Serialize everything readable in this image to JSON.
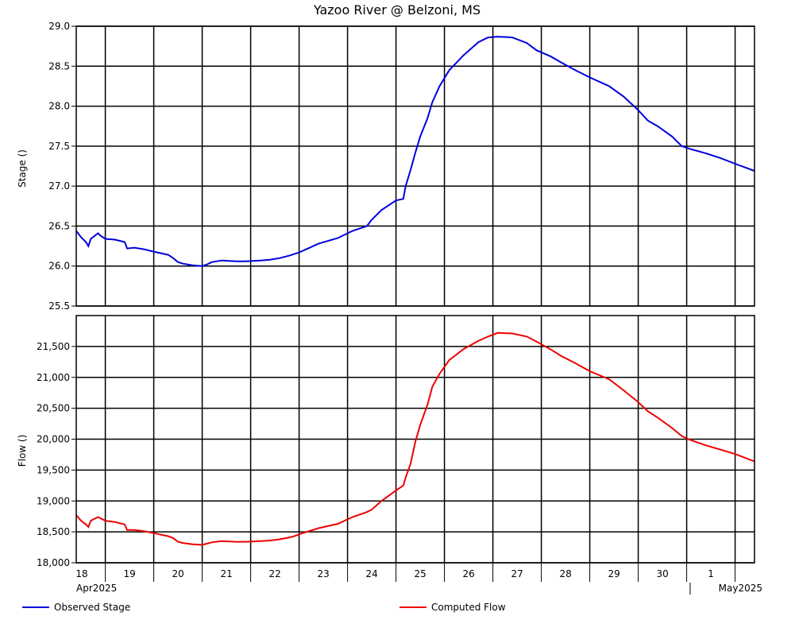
{
  "chart_data": [
    {
      "type": "line",
      "title": "Yazoo River @ Belzoni, MS",
      "ylabel": "Stage ()",
      "ylim": [
        25.5,
        29.0
      ],
      "yticks": [
        "25.5",
        "26.0",
        "26.5",
        "27.0",
        "27.5",
        "28.0",
        "28.5",
        "29.0"
      ],
      "series": [
        {
          "name": "Observed Stage",
          "color": "#0000dd",
          "x": [
            18.0,
            18.1,
            18.2,
            18.25,
            18.3,
            18.45,
            18.5,
            18.6,
            18.8,
            19.0,
            19.05,
            19.2,
            19.4,
            19.6,
            19.9,
            20.0,
            20.1,
            20.2,
            20.4,
            20.6,
            20.7,
            20.8,
            21.0,
            21.3,
            21.5,
            21.8,
            22.0,
            22.2,
            22.4,
            22.5,
            22.6,
            23.0,
            23.4,
            23.7,
            24.0,
            24.1,
            24.3,
            24.6,
            24.75,
            24.8,
            24.9,
            25.0,
            25.1,
            25.25,
            25.35,
            25.5,
            25.7,
            26.0,
            26.3,
            26.5,
            26.7,
            27.0,
            27.3,
            27.5,
            27.8,
            28.0,
            28.3,
            28.6,
            29.0,
            29.3,
            29.6,
            29.8,
            30.0,
            30.3,
            30.5,
            30.7,
            31.0,
            31.3,
            31.6,
            32.0
          ],
          "values": [
            26.44,
            26.36,
            26.3,
            26.25,
            26.34,
            26.41,
            26.38,
            26.34,
            26.33,
            26.3,
            26.22,
            26.23,
            26.21,
            26.18,
            26.14,
            26.1,
            26.05,
            26.03,
            26.01,
            26.0,
            26.02,
            26.05,
            26.07,
            26.06,
            26.06,
            26.07,
            26.08,
            26.1,
            26.13,
            26.15,
            26.17,
            26.28,
            26.35,
            26.44,
            26.5,
            26.58,
            26.7,
            26.82,
            26.84,
            27.0,
            27.2,
            27.42,
            27.62,
            27.85,
            28.05,
            28.25,
            28.45,
            28.64,
            28.8,
            28.86,
            28.87,
            28.86,
            28.79,
            28.7,
            28.62,
            28.55,
            28.45,
            28.36,
            28.25,
            28.12,
            27.95,
            27.82,
            27.75,
            27.62,
            27.5,
            27.46,
            27.41,
            27.35,
            27.28,
            27.19
          ]
        }
      ]
    },
    {
      "type": "line",
      "title": "",
      "ylabel": "Flow ()",
      "ylim": [
        18000,
        22000
      ],
      "yticks": [
        "18,000",
        "18,500",
        "19,000",
        "19,500",
        "20,000",
        "20,500",
        "21,000",
        "21,500"
      ],
      "x_day_labels": [
        "18",
        "19",
        "20",
        "21",
        "22",
        "23",
        "24",
        "25",
        "26",
        "27",
        "28",
        "29",
        "30",
        "1"
      ],
      "x_month_labels": {
        "left": "Apr2025",
        "right": "May2025"
      },
      "series": [
        {
          "name": "Computed Flow",
          "color": "#ee0000",
          "x": [
            18.0,
            18.1,
            18.2,
            18.25,
            18.3,
            18.45,
            18.5,
            18.6,
            18.8,
            19.0,
            19.05,
            19.2,
            19.4,
            19.6,
            19.9,
            20.0,
            20.1,
            20.2,
            20.4,
            20.6,
            20.7,
            20.8,
            21.0,
            21.3,
            21.5,
            21.8,
            22.0,
            22.2,
            22.4,
            22.5,
            22.6,
            23.0,
            23.4,
            23.7,
            24.0,
            24.1,
            24.3,
            24.6,
            24.75,
            24.8,
            24.9,
            25.0,
            25.1,
            25.25,
            25.35,
            25.5,
            25.7,
            26.0,
            26.3,
            26.5,
            26.7,
            27.0,
            27.3,
            27.5,
            27.8,
            28.0,
            28.3,
            28.6,
            29.0,
            29.3,
            29.6,
            29.8,
            30.0,
            30.3,
            30.5,
            30.7,
            31.0,
            31.3,
            31.6,
            32.0
          ],
          "values": [
            18770,
            18680,
            18620,
            18580,
            18680,
            18740,
            18720,
            18680,
            18660,
            18620,
            18530,
            18530,
            18510,
            18480,
            18430,
            18400,
            18340,
            18320,
            18300,
            18290,
            18310,
            18330,
            18350,
            18340,
            18340,
            18350,
            18360,
            18380,
            18410,
            18430,
            18460,
            18560,
            18630,
            18740,
            18820,
            18860,
            19000,
            19170,
            19250,
            19380,
            19600,
            19960,
            20230,
            20560,
            20850,
            21060,
            21280,
            21460,
            21590,
            21660,
            21720,
            21710,
            21660,
            21580,
            21450,
            21350,
            21230,
            21100,
            20970,
            20790,
            20600,
            20450,
            20350,
            20180,
            20050,
            19980,
            19900,
            19830,
            19760,
            19640
          ]
        }
      ]
    }
  ]
}
